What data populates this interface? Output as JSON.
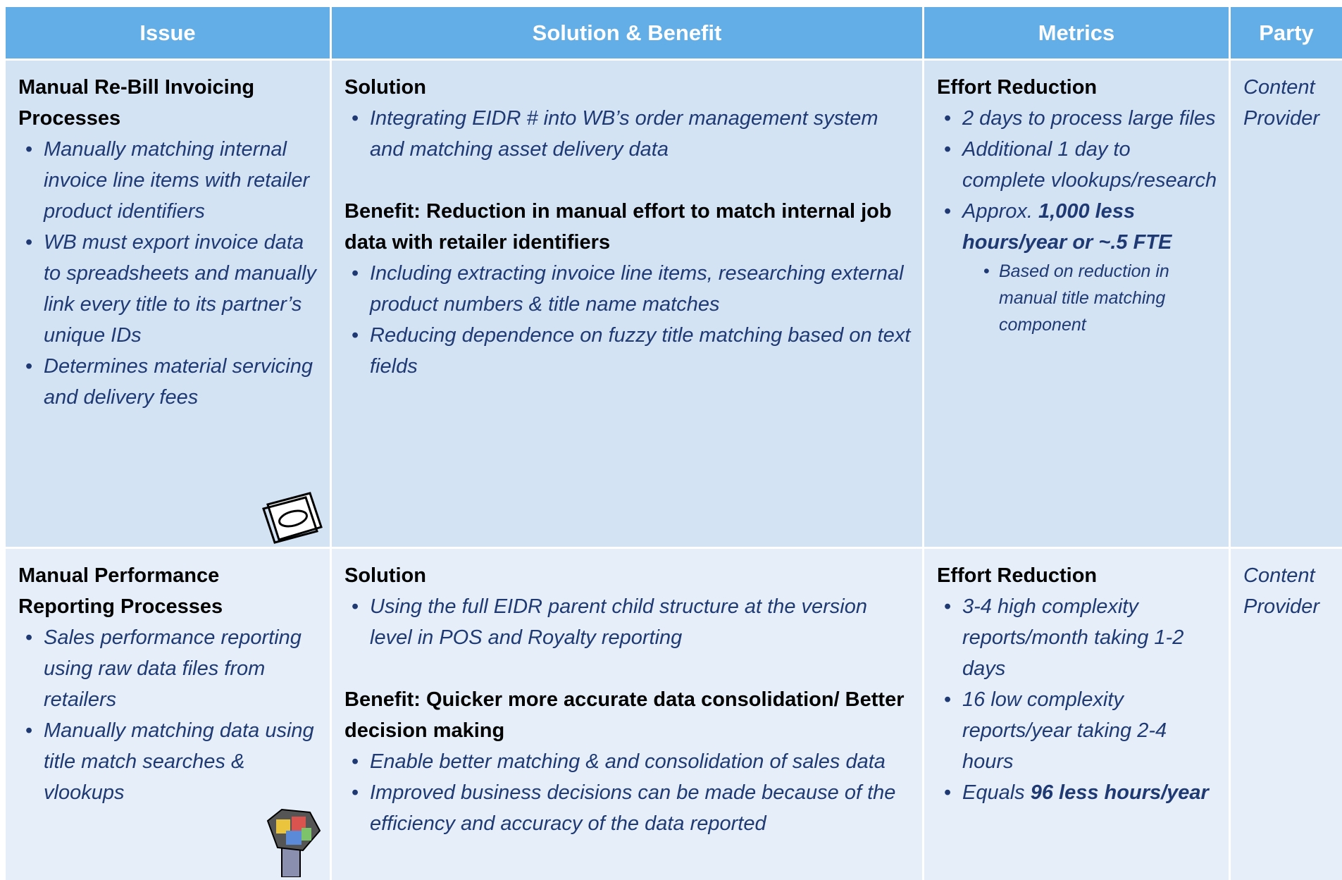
{
  "table": {
    "headers": [
      "Issue",
      "Solution & Benefit",
      "Metrics",
      "Party"
    ],
    "rows": [
      {
        "issue": {
          "title": "Manual Re-Bill Invoicing Processes",
          "bullets": [
            "Manually matching internal invoice line items with retailer product identifiers",
            "WB must export invoice data to spreadsheets and manually link every title to its partner’s unique IDs",
            "Determines material servicing and delivery fees"
          ]
        },
        "solution": {
          "heading": "Solution",
          "bullets": [
            "Integrating EIDR # into WB’s order management system and matching asset delivery data"
          ]
        },
        "benefit": {
          "heading": "Benefit:  Reduction in manual effort to match internal job data with retailer identifiers",
          "bullets": [
            "Including extracting invoice line items, researching external  product numbers & title name matches",
            "Reducing dependence on fuzzy title matching based on text fields"
          ]
        },
        "metrics": {
          "heading": "Effort Reduction",
          "bullets": [
            {
              "text": "2 days to process large files"
            },
            {
              "text": "Additional 1 day to complete vlookups/research"
            },
            {
              "text": "Approx. ",
              "emphasis": "1,000 less hours/year or ~.5 FTE"
            }
          ],
          "notes": [
            "Based on reduction in manual title matching component"
          ]
        },
        "party": "Content Provider"
      },
      {
        "issue": {
          "title": "Manual Performance Reporting Processes",
          "bullets": [
            "Sales performance reporting using raw data files from retailers",
            "Manually matching data using title match searches & vlookups"
          ]
        },
        "solution": {
          "heading": "Solution",
          "bullets": [
            "Using the full EIDR parent child structure at the version level in POS and Royalty reporting"
          ]
        },
        "benefit": {
          "heading": "Benefit:  Quicker more accurate data consolidation/ Better decision making",
          "bullets": [
            "Enable better matching & and consolidation of sales data",
            "Improved business decisions can be made because of the efficiency and accuracy of the data reported"
          ]
        },
        "metrics": {
          "heading": "Effort Reduction",
          "bullets": [
            {
              "text": "3-4 high complexity reports/month taking 1-2 days"
            },
            {
              "text": "16 low complexity reports/year taking 2-4 hours"
            },
            {
              "text": "Equals ",
              "emphasis": "96 less hours/year"
            }
          ],
          "notes": []
        },
        "party": "Content Provider"
      }
    ]
  }
}
